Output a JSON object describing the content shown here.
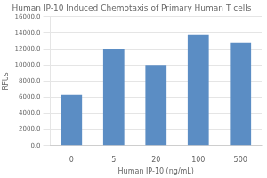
{
  "chart_data": {
    "type": "bar",
    "title": "Human IP-10 Induced Chemotaxis of Primary Human T cells",
    "xlabel": "Human IP-10 (ng/mL)",
    "ylabel": "RFUs",
    "categories": [
      "0",
      "5",
      "20",
      "100",
      "500"
    ],
    "values": [
      6300,
      12000,
      10000,
      13800,
      12800
    ],
    "color": "#5b8dc4",
    "ylim": [
      0,
      16000
    ],
    "yticks": [
      {
        "value": 0,
        "label": "0.0"
      },
      {
        "value": 2000,
        "label": "2000.0"
      },
      {
        "value": 4000,
        "label": "4000.0"
      },
      {
        "value": 6000,
        "label": "6000.0"
      },
      {
        "value": 8000,
        "label": "8000.0"
      },
      {
        "value": 10000,
        "label": "10000.0"
      },
      {
        "value": 12000,
        "label": "12000.0"
      },
      {
        "value": 14000,
        "label": "14000.0"
      },
      {
        "value": 16000,
        "label": "16000.0"
      }
    ],
    "grid": true
  }
}
